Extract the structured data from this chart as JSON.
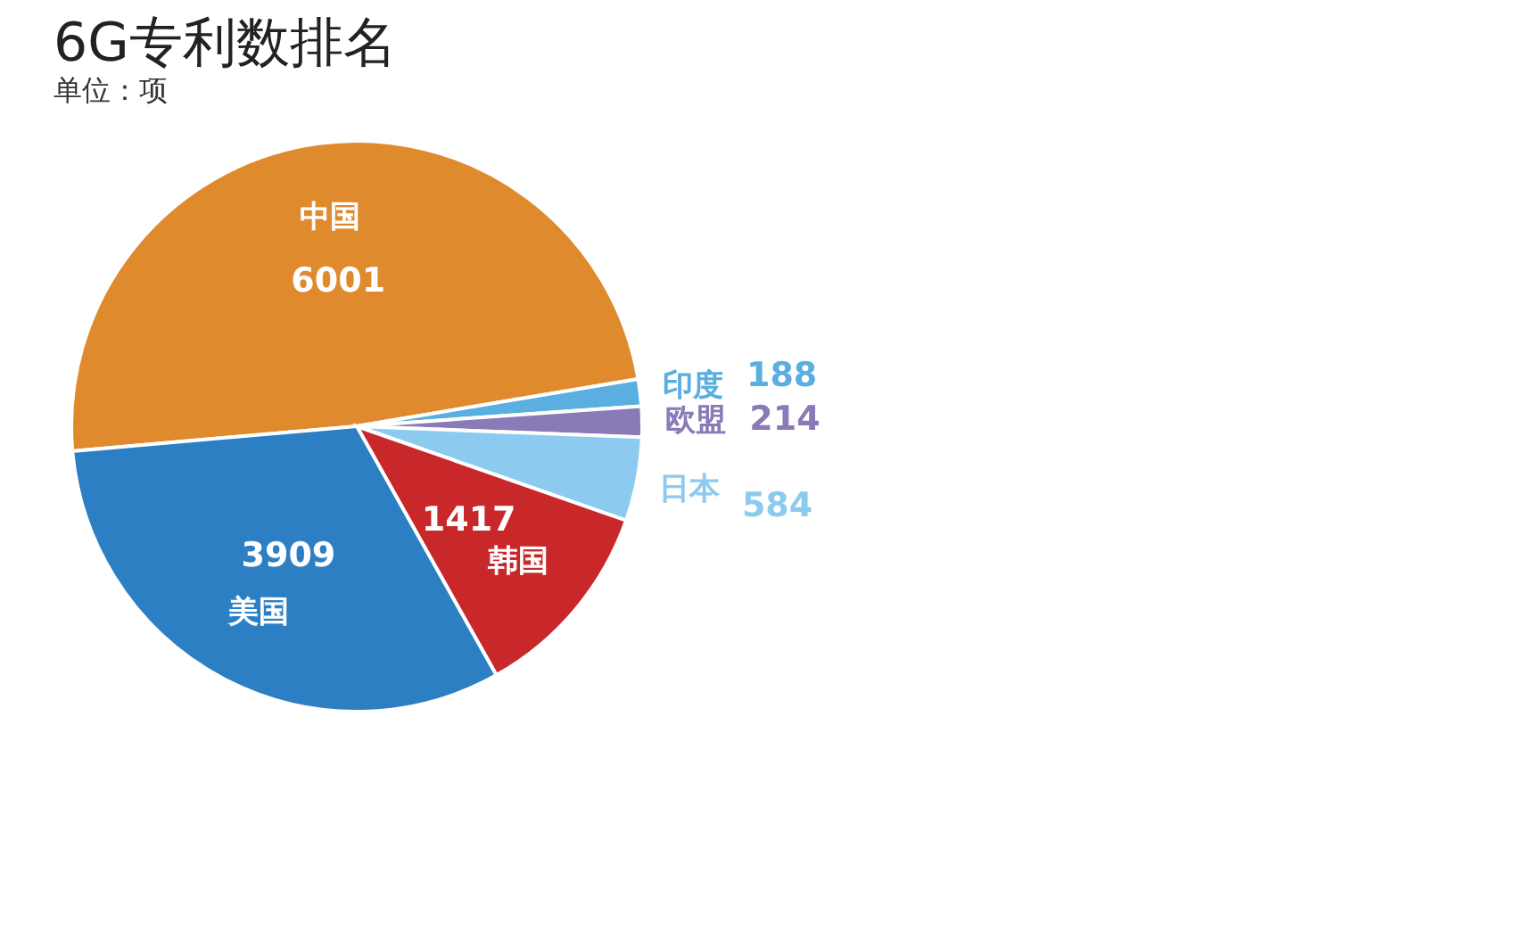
{
  "chart_data": {
    "type": "pie",
    "title": "6G专利数排名",
    "subtitle": "单位：项",
    "categories": [
      "中国",
      "印度",
      "欧盟",
      "日本",
      "韩国",
      "美国"
    ],
    "values": [
      6001,
      188,
      214,
      584,
      1417,
      3909
    ],
    "colors": [
      "#e08a2e",
      "#5aaee0",
      "#8a7ab8",
      "#8ccbef",
      "#c8282a",
      "#2d7fc4"
    ],
    "data_labels": true,
    "legend": false
  }
}
